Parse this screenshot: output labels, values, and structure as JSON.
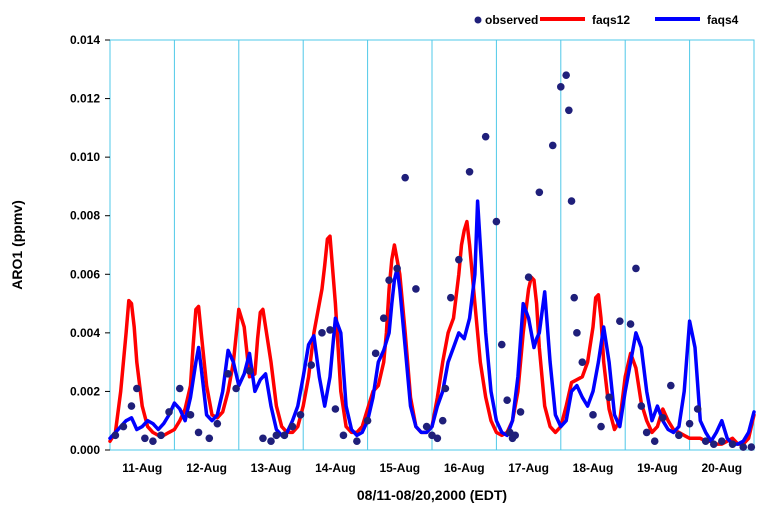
{
  "chart_data": {
    "type": "line",
    "xlabel": "08/11-08/20,2000 (EDT)",
    "ylabel": "ARO1 (ppmv)",
    "ylim": [
      0,
      0.014
    ],
    "xlim": [
      0,
      240
    ],
    "yticks": [
      "0.000",
      "0.002",
      "0.004",
      "0.006",
      "0.008",
      "0.010",
      "0.012",
      "0.014"
    ],
    "categories": [
      "11-Aug",
      "12-Aug",
      "13-Aug",
      "14-Aug",
      "15-Aug",
      "16-Aug",
      "17-Aug",
      "18-Aug",
      "19-Aug",
      "20-Aug"
    ],
    "grid": "vertical day separators",
    "legend_position": "top-right",
    "colors": {
      "observed": "#1f1f7a",
      "faqs12": "#ff0000",
      "faqs4": "#0000ff",
      "grid": "#4fc8e8"
    },
    "series": [
      {
        "name": "observed",
        "style": "points",
        "x": [
          2,
          5,
          8,
          10,
          13,
          16,
          19,
          22,
          26,
          30,
          33,
          37,
          40,
          44,
          47,
          52,
          57,
          60,
          62,
          65,
          68,
          71,
          75,
          79,
          82,
          84,
          87,
          92,
          96,
          99,
          102,
          104,
          107,
          110,
          114,
          118,
          120,
          122,
          124,
          125,
          127,
          130,
          134,
          140,
          144,
          146,
          148,
          149,
          150,
          151,
          153,
          156,
          160,
          165,
          168,
          170,
          171,
          172,
          173,
          174,
          176,
          180,
          183,
          186,
          190,
          194,
          196,
          198,
          200,
          203,
          206,
          209,
          212,
          216,
          219,
          222,
          225,
          228,
          232,
          236,
          239
        ],
        "y": [
          0.0005,
          0.0008,
          0.0015,
          0.0021,
          0.0004,
          0.0003,
          0.0005,
          0.0013,
          0.0021,
          0.0012,
          0.0006,
          0.0004,
          0.0009,
          0.0026,
          0.0021,
          0.0027,
          0.0004,
          0.0003,
          0.0005,
          0.0005,
          0.0008,
          0.0012,
          0.0029,
          0.004,
          0.0041,
          0.0014,
          0.0005,
          0.0003,
          0.001,
          0.0033,
          0.0045,
          0.0058,
          0.0062,
          0.0093,
          0.0055,
          0.0008,
          0.0005,
          0.0004,
          0.001,
          0.0021,
          0.0052,
          0.0065,
          0.0095,
          0.0107,
          0.0078,
          0.0036,
          0.0017,
          0.0006,
          0.0004,
          0.0005,
          0.0013,
          0.0059,
          0.0088,
          0.0104,
          0.0124,
          0.0128,
          0.0116,
          0.0085,
          0.0052,
          0.004,
          0.003,
          0.0012,
          0.0008,
          0.0018,
          0.0044,
          0.0043,
          0.0062,
          0.0015,
          0.0006,
          0.0003,
          0.0011,
          0.0022,
          0.0005,
          0.0009,
          0.0014,
          0.0003,
          0.0002,
          0.0003,
          0.0002,
          0.0001,
          0.0001
        ]
      },
      {
        "name": "faqs12",
        "style": "line",
        "x": [
          0,
          2,
          4,
          6,
          7,
          8,
          9,
          10,
          12,
          14,
          16,
          18,
          20,
          22,
          24,
          26,
          28,
          30,
          31,
          32,
          33,
          34,
          36,
          38,
          40,
          42,
          44,
          46,
          48,
          50,
          52,
          54,
          55,
          56,
          57,
          58,
          60,
          62,
          64,
          66,
          68,
          70,
          72,
          74,
          76,
          78,
          79,
          80,
          81,
          82,
          84,
          86,
          88,
          90,
          92,
          94,
          96,
          98,
          100,
          102,
          103,
          104,
          105,
          106,
          108,
          110,
          112,
          114,
          116,
          118,
          120,
          122,
          124,
          126,
          128,
          130,
          131,
          132,
          133,
          134,
          136,
          138,
          140,
          142,
          144,
          146,
          148,
          150,
          152,
          154,
          156,
          157,
          158,
          159,
          160,
          162,
          164,
          166,
          168,
          170,
          172,
          174,
          176,
          178,
          180,
          181,
          182,
          183,
          184,
          186,
          188,
          190,
          192,
          194,
          196,
          198,
          200,
          202,
          204,
          206,
          208,
          210,
          212,
          214,
          216,
          218,
          220,
          222,
          224,
          226,
          228,
          230,
          232,
          234,
          236,
          238,
          240
        ],
        "y": [
          0.0003,
          0.0006,
          0.002,
          0.004,
          0.0051,
          0.005,
          0.0042,
          0.003,
          0.0015,
          0.0008,
          0.0006,
          0.0005,
          0.0005,
          0.0006,
          0.0007,
          0.001,
          0.0014,
          0.0022,
          0.0036,
          0.0048,
          0.0049,
          0.004,
          0.0022,
          0.0012,
          0.0011,
          0.0013,
          0.002,
          0.003,
          0.0048,
          0.0042,
          0.0025,
          0.0026,
          0.0038,
          0.0047,
          0.0048,
          0.0042,
          0.003,
          0.0015,
          0.0008,
          0.0006,
          0.0006,
          0.0008,
          0.0015,
          0.0025,
          0.004,
          0.005,
          0.0055,
          0.0063,
          0.0072,
          0.0073,
          0.005,
          0.002,
          0.0008,
          0.0006,
          0.0006,
          0.0008,
          0.0014,
          0.002,
          0.0022,
          0.003,
          0.004,
          0.0055,
          0.0065,
          0.007,
          0.006,
          0.004,
          0.0018,
          0.0008,
          0.0006,
          0.0006,
          0.0008,
          0.0018,
          0.003,
          0.004,
          0.0045,
          0.006,
          0.007,
          0.0075,
          0.0078,
          0.007,
          0.005,
          0.003,
          0.0018,
          0.001,
          0.0006,
          0.0005,
          0.0006,
          0.001,
          0.002,
          0.004,
          0.0055,
          0.0059,
          0.0058,
          0.005,
          0.0035,
          0.0015,
          0.0008,
          0.0006,
          0.0008,
          0.0015,
          0.0023,
          0.0024,
          0.0025,
          0.003,
          0.0042,
          0.0052,
          0.0053,
          0.0045,
          0.003,
          0.0014,
          0.0007,
          0.001,
          0.0025,
          0.0033,
          0.0028,
          0.0016,
          0.001,
          0.0006,
          0.0008,
          0.0014,
          0.001,
          0.0007,
          0.0006,
          0.0005,
          0.0004,
          0.0004,
          0.0004,
          0.0003,
          0.0003,
          0.0002,
          0.0002,
          0.0003,
          0.0004,
          0.0002,
          0.0002,
          0.0004,
          0.0012
        ]
      },
      {
        "name": "faqs4",
        "style": "line",
        "x": [
          0,
          2,
          4,
          6,
          8,
          9,
          10,
          12,
          14,
          16,
          18,
          20,
          22,
          24,
          26,
          28,
          30,
          32,
          33,
          34,
          36,
          38,
          40,
          42,
          44,
          46,
          48,
          50,
          52,
          54,
          56,
          58,
          60,
          62,
          64,
          66,
          68,
          70,
          72,
          74,
          76,
          78,
          80,
          82,
          84,
          86,
          88,
          90,
          92,
          94,
          96,
          98,
          100,
          102,
          104,
          105,
          106,
          107,
          108,
          110,
          112,
          114,
          116,
          118,
          120,
          122,
          124,
          126,
          128,
          130,
          132,
          134,
          136,
          137,
          138,
          140,
          142,
          144,
          146,
          148,
          150,
          152,
          154,
          156,
          158,
          159,
          160,
          162,
          164,
          166,
          168,
          170,
          172,
          174,
          176,
          178,
          180,
          182,
          184,
          186,
          188,
          190,
          192,
          194,
          196,
          198,
          200,
          202,
          204,
          206,
          208,
          210,
          212,
          214,
          216,
          218,
          220,
          222,
          224,
          226,
          228,
          230,
          232,
          234,
          236,
          238,
          240
        ],
        "y": [
          0.0004,
          0.0006,
          0.0008,
          0.001,
          0.0011,
          0.0009,
          0.0007,
          0.0008,
          0.001,
          0.0009,
          0.0007,
          0.0009,
          0.0012,
          0.0016,
          0.0014,
          0.001,
          0.0018,
          0.003,
          0.0035,
          0.0028,
          0.0012,
          0.001,
          0.0012,
          0.002,
          0.0034,
          0.003,
          0.0022,
          0.0026,
          0.0033,
          0.002,
          0.0024,
          0.0026,
          0.0015,
          0.0007,
          0.0005,
          0.0006,
          0.001,
          0.0015,
          0.0025,
          0.0036,
          0.0039,
          0.0025,
          0.0015,
          0.0025,
          0.0045,
          0.004,
          0.0015,
          0.0007,
          0.0005,
          0.0006,
          0.001,
          0.0018,
          0.003,
          0.0034,
          0.004,
          0.005,
          0.0058,
          0.0062,
          0.0055,
          0.0035,
          0.0015,
          0.0008,
          0.0006,
          0.0006,
          0.0008,
          0.0015,
          0.002,
          0.003,
          0.0035,
          0.004,
          0.0038,
          0.0045,
          0.006,
          0.0085,
          0.007,
          0.004,
          0.002,
          0.001,
          0.0006,
          0.0005,
          0.001,
          0.0025,
          0.005,
          0.0045,
          0.0035,
          0.0038,
          0.004,
          0.0054,
          0.003,
          0.0012,
          0.0008,
          0.001,
          0.002,
          0.0022,
          0.0018,
          0.0015,
          0.002,
          0.003,
          0.0042,
          0.003,
          0.0012,
          0.0008,
          0.002,
          0.003,
          0.004,
          0.0035,
          0.002,
          0.001,
          0.0015,
          0.001,
          0.0007,
          0.0006,
          0.0008,
          0.002,
          0.0044,
          0.0035,
          0.001,
          0.0006,
          0.0003,
          0.0006,
          0.001,
          0.0004,
          0.0002,
          0.0002,
          0.0003,
          0.0006,
          0.0013
        ]
      }
    ]
  }
}
